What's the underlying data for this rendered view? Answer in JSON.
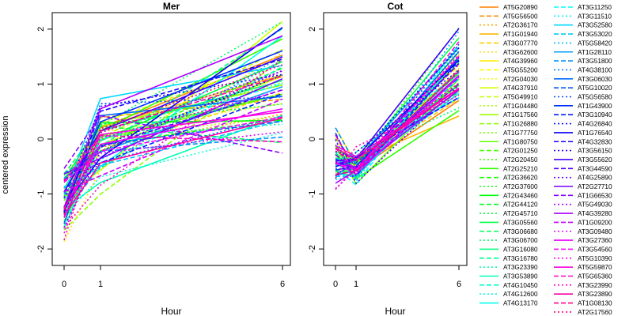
{
  "chart_data": {
    "type": "line",
    "ylabel": "centered expression",
    "panels": [
      {
        "title": "Mer",
        "xlabel": "Hour",
        "x_ticks": [
          "0",
          "1",
          "6"
        ],
        "y_ticks": [
          "-2",
          "-1",
          "0",
          "1",
          "2"
        ],
        "ylim": [
          -2.3,
          2.3
        ],
        "base": [
          -1.2,
          -0.05,
          1.0
        ],
        "spread": [
          0.9,
          0.8,
          1.1
        ]
      },
      {
        "title": "Cot",
        "xlabel": "Hour",
        "x_ticks": [
          "0",
          "1",
          "6"
        ],
        "y_ticks": [
          "-2",
          "-1",
          "0",
          "1",
          "2"
        ],
        "ylim": [
          -2.3,
          2.3
        ],
        "base": [
          -0.35,
          -0.55,
          1.3
        ],
        "spread": [
          0.5,
          0.35,
          0.75
        ]
      }
    ],
    "grid": false,
    "legend_position": "right",
    "legend_columns": [
      [
        "AT5G20890",
        "AT5G56500",
        "AT2G36170",
        "AT1G01940",
        "AT3G07770",
        "AT3G62600",
        "AT4G39960",
        "AT5G55200",
        "AT2G04030",
        "AT4G37910",
        "AT5G49910",
        "AT1G04480",
        "AT1G17560",
        "AT1G26880",
        "AT1G77750",
        "AT1G80750",
        "AT2G01250",
        "AT2G20450",
        "AT2G25210",
        "AT2G36620",
        "AT2G37600",
        "AT2G43460",
        "AT2G44120",
        "AT2G45710",
        "AT3G05560",
        "AT3G06680",
        "AT3G06700",
        "AT3G16080",
        "AT3G16780",
        "AT3G23390",
        "AT3G53890",
        "AT4G10450",
        "AT4G12600",
        "AT4G13170"
      ],
      [
        "AT3G11250",
        "AT3G11510",
        "AT3G52580",
        "AT3G53020",
        "AT5G58420",
        "AT1G28110",
        "AT3G51800",
        "AT4G38100",
        "AT3G06030",
        "AT5G10020",
        "AT5G56580",
        "AT1G43900",
        "AT3G10940",
        "AT4G26840",
        "AT1G76540",
        "AT4G32830",
        "AT3G56150",
        "AT3G55620",
        "AT3G44590",
        "AT4G25890",
        "AT2G27710",
        "AT1G66530",
        "AT5G49030",
        "AT4G39280",
        "AT1G09200",
        "AT3G09480",
        "AT3G27360",
        "AT3G54560",
        "AT5G10390",
        "AT5G59870",
        "AT5G65360",
        "AT3G23990",
        "AT3G23890",
        "AT1G08130",
        "AT2G17560"
      ]
    ]
  }
}
